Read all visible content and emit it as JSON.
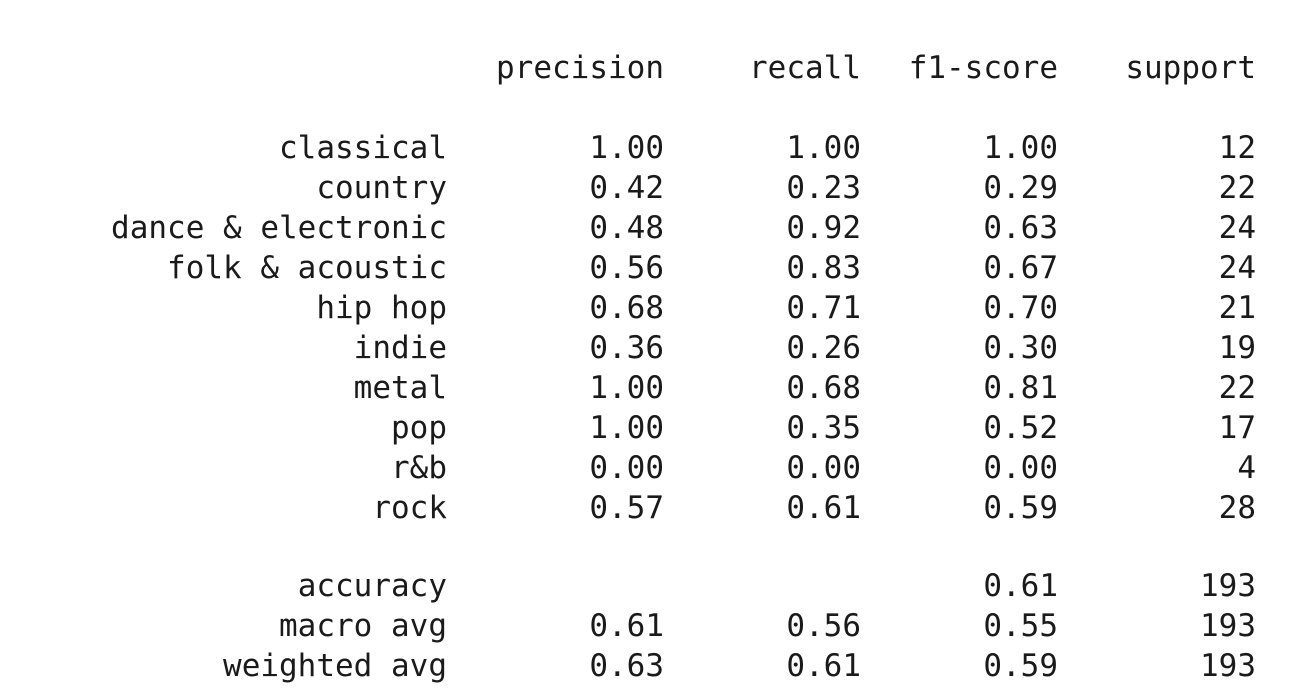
{
  "report": {
    "headers": {
      "precision": "precision",
      "recall": "recall",
      "f1": "f1-score",
      "support": "support"
    },
    "classes": [
      {
        "label": "classical",
        "precision": "1.00",
        "recall": "1.00",
        "f1": "1.00",
        "support": "12"
      },
      {
        "label": "country",
        "precision": "0.42",
        "recall": "0.23",
        "f1": "0.29",
        "support": "22"
      },
      {
        "label": "dance & electronic",
        "precision": "0.48",
        "recall": "0.92",
        "f1": "0.63",
        "support": "24"
      },
      {
        "label": "folk & acoustic",
        "precision": "0.56",
        "recall": "0.83",
        "f1": "0.67",
        "support": "24"
      },
      {
        "label": "hip hop",
        "precision": "0.68",
        "recall": "0.71",
        "f1": "0.70",
        "support": "21"
      },
      {
        "label": "indie",
        "precision": "0.36",
        "recall": "0.26",
        "f1": "0.30",
        "support": "19"
      },
      {
        "label": "metal",
        "precision": "1.00",
        "recall": "0.68",
        "f1": "0.81",
        "support": "22"
      },
      {
        "label": "pop",
        "precision": "1.00",
        "recall": "0.35",
        "f1": "0.52",
        "support": "17"
      },
      {
        "label": "r&b",
        "precision": "0.00",
        "recall": "0.00",
        "f1": "0.00",
        "support": "4"
      },
      {
        "label": "rock",
        "precision": "0.57",
        "recall": "0.61",
        "f1": "0.59",
        "support": "28"
      }
    ],
    "summary": [
      {
        "label": "accuracy",
        "precision": "",
        "recall": "",
        "f1": "0.61",
        "support": "193"
      },
      {
        "label": "macro avg",
        "precision": "0.61",
        "recall": "0.56",
        "f1": "0.55",
        "support": "193"
      },
      {
        "label": "weighted avg",
        "precision": "0.63",
        "recall": "0.61",
        "f1": "0.59",
        "support": "193"
      }
    ]
  }
}
